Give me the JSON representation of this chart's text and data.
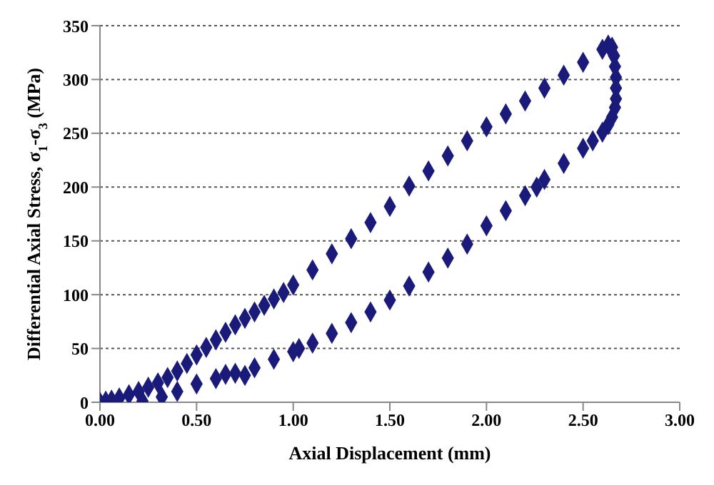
{
  "chart_data": {
    "type": "scatter",
    "xlabel": "Axial Displacement (mm)",
    "ylabel": "Differential Axial Stress, σ$_{1}$-σ$_{3}$ (MPa)",
    "x": [
      0,
      0.03,
      0.06,
      0.1,
      0.15,
      0.2,
      0.25,
      0.3,
      0.35,
      0.4,
      0.45,
      0.5,
      0.55,
      0.6,
      0.65,
      0.7,
      0.75,
      0.8,
      0.85,
      0.9,
      0.95,
      1.0,
      1.1,
      1.2,
      1.3,
      1.4,
      1.5,
      1.6,
      1.7,
      1.8,
      1.9,
      2.0,
      2.1,
      2.2,
      2.3,
      2.4,
      2.5,
      2.6,
      2.63,
      2.65,
      2.66,
      2.665,
      2.67,
      2.67,
      2.67,
      2.665,
      2.65,
      2.63,
      2.6,
      2.55,
      2.5,
      2.4,
      2.3,
      2.26,
      2.2,
      2.1,
      2.0,
      1.9,
      1.8,
      1.7,
      1.6,
      1.5,
      1.4,
      1.3,
      1.2,
      1.1,
      1.03,
      1.0,
      0.9,
      0.8,
      0.75,
      0.7,
      0.65,
      0.6,
      0.5,
      0.4,
      0.32,
      0.22
    ],
    "series": [
      {
        "color": "#1a1a7a",
        "values": [
          0,
          1,
          2,
          4,
          7,
          10,
          14,
          18,
          23,
          29,
          36,
          44,
          51,
          58,
          65,
          72,
          78,
          84,
          90,
          96,
          102,
          109,
          123,
          138,
          152,
          167,
          182,
          201,
          215,
          229,
          243,
          256,
          268,
          280,
          292,
          304,
          316,
          328,
          332,
          330,
          322,
          312,
          302,
          292,
          282,
          274,
          265,
          258,
          251,
          243,
          236,
          222,
          207,
          200,
          192,
          178,
          164,
          147,
          134,
          121,
          108,
          95,
          84,
          74,
          64,
          55,
          50,
          47,
          40,
          32,
          25,
          27,
          26,
          22,
          17,
          10,
          5,
          1
        ]
      }
    ],
    "xlim": [
      0,
      3
    ],
    "xticks": [
      {
        "value": 0,
        "label": "0.00"
      },
      {
        "value": 0.5,
        "label": "0.50"
      },
      {
        "value": 1,
        "label": "1.00"
      },
      {
        "value": 1.5,
        "label": "1.50"
      },
      {
        "value": 2,
        "label": "2.00"
      },
      {
        "value": 2.5,
        "label": "2.50"
      },
      {
        "value": 3,
        "label": "3.00"
      }
    ],
    "ylim": [
      0,
      350
    ],
    "yticks": [
      0,
      50,
      100,
      150,
      200,
      250,
      300,
      350
    ],
    "grid": "y",
    "marker": "diamond",
    "legend": false
  }
}
